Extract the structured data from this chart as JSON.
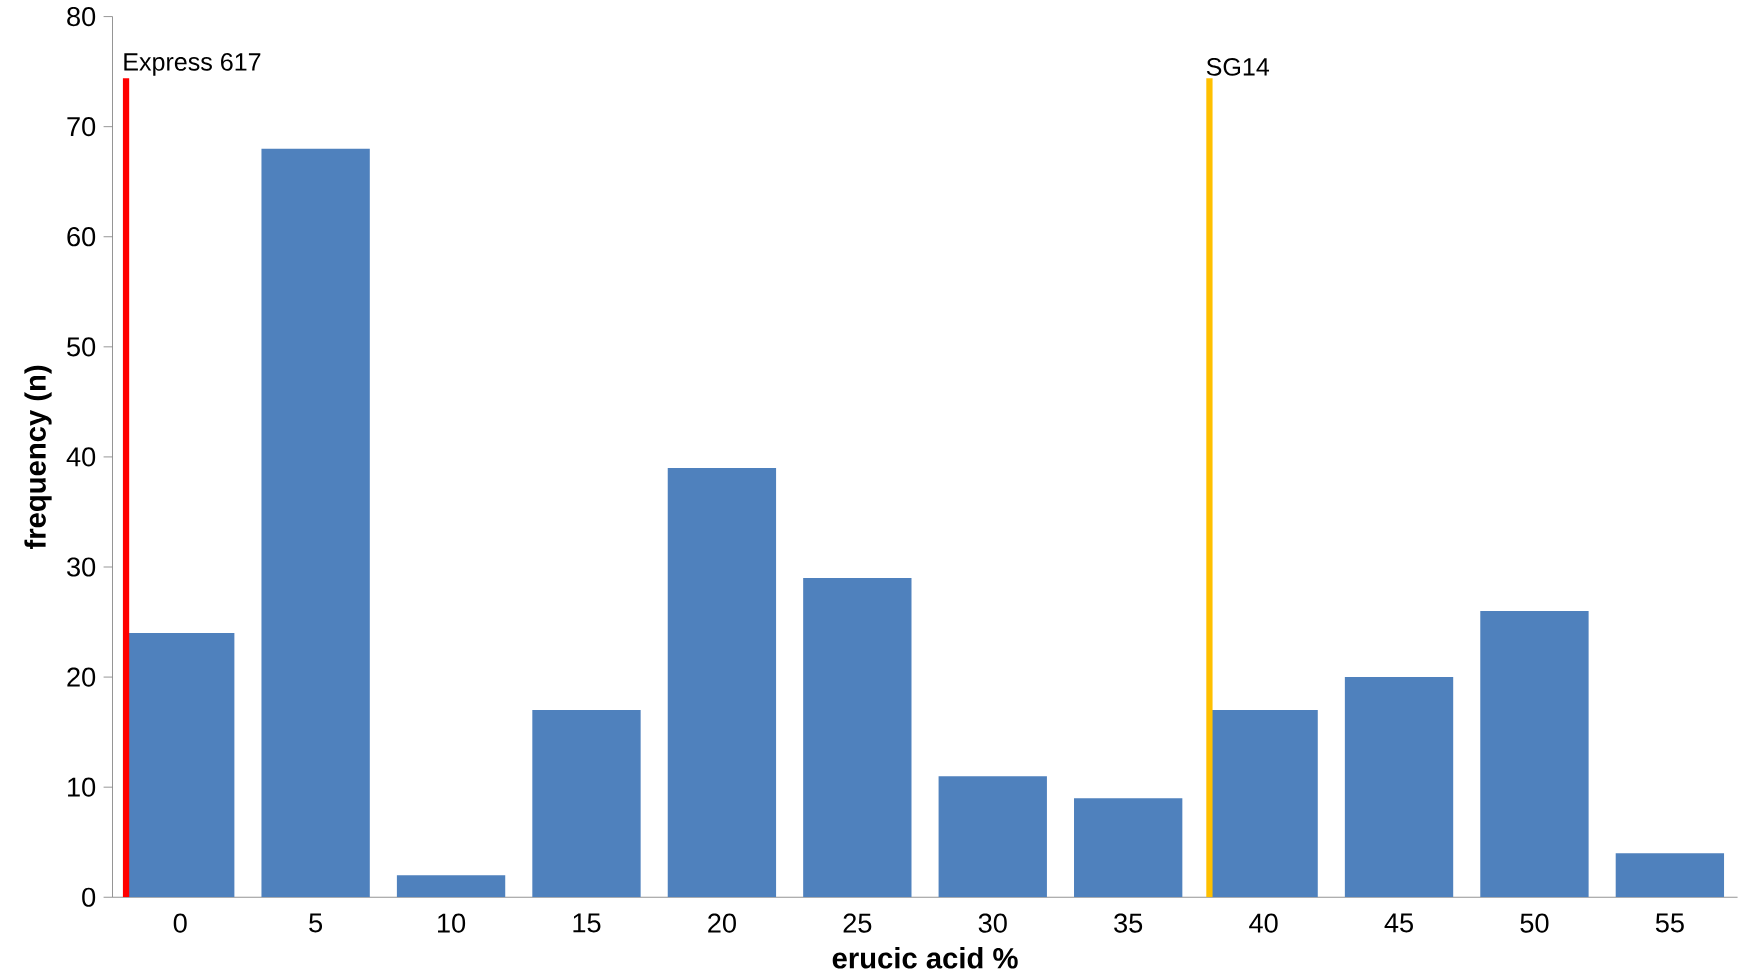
{
  "chart_data": {
    "type": "bar",
    "xlabel": "erucic acid %",
    "ylabel": "frequency (n)",
    "x": [
      0,
      5,
      10,
      15,
      20,
      25,
      30,
      35,
      40,
      45,
      50,
      55
    ],
    "values": [
      24,
      68,
      2,
      17,
      39,
      29,
      11,
      9,
      17,
      20,
      26,
      4
    ],
    "color": "#4f81bd",
    "xlim": [
      -2.5,
      57.5
    ],
    "xticks": [
      0,
      5,
      10,
      15,
      20,
      25,
      30,
      35,
      40,
      45,
      50,
      55
    ],
    "ylim": [
      0,
      80
    ],
    "yticks": [
      0,
      10,
      20,
      30,
      40,
      50,
      60,
      70,
      80
    ],
    "grid": false,
    "ref_lines": [
      {
        "axis": "x",
        "value": -2,
        "label": "Express 617",
        "color": "#ff0000"
      },
      {
        "axis": "x",
        "value": 38,
        "label": "SG14",
        "color": "#ffc000"
      }
    ]
  }
}
